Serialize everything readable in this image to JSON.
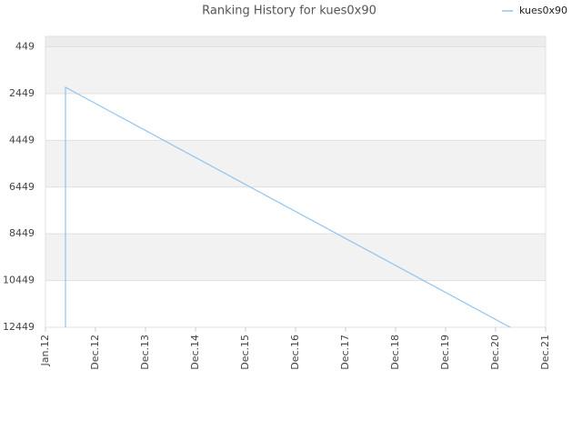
{
  "chart_data": {
    "type": "line",
    "title": "Ranking History for kues0x90",
    "x": [
      0.4,
      0.4,
      9.29
    ],
    "series": [
      {
        "name": "kues0x90",
        "color": "#90c4f0",
        "values": [
          12449,
          2179,
          12449
        ]
      }
    ],
    "xlim": [
      0,
      10
    ],
    "xticks": [
      {
        "value": 0,
        "label": "Jan.12"
      },
      {
        "value": 1,
        "label": "Dec.12"
      },
      {
        "value": 2,
        "label": "Dec.13"
      },
      {
        "value": 3,
        "label": "Dec.14"
      },
      {
        "value": 4,
        "label": "Dec.15"
      },
      {
        "value": 5,
        "label": "Dec.16"
      },
      {
        "value": 6,
        "label": "Dec.17"
      },
      {
        "value": 7,
        "label": "Dec.18"
      },
      {
        "value": 8,
        "label": "Dec.19"
      },
      {
        "value": 9,
        "label": "Dec.20"
      },
      {
        "value": 10,
        "label": "Dec.21"
      }
    ],
    "ylim": [
      12449,
      0
    ],
    "yticks": [
      449,
      2449,
      4449,
      6449,
      8449,
      10449,
      12449
    ],
    "grid": true,
    "legend": "top-right"
  }
}
